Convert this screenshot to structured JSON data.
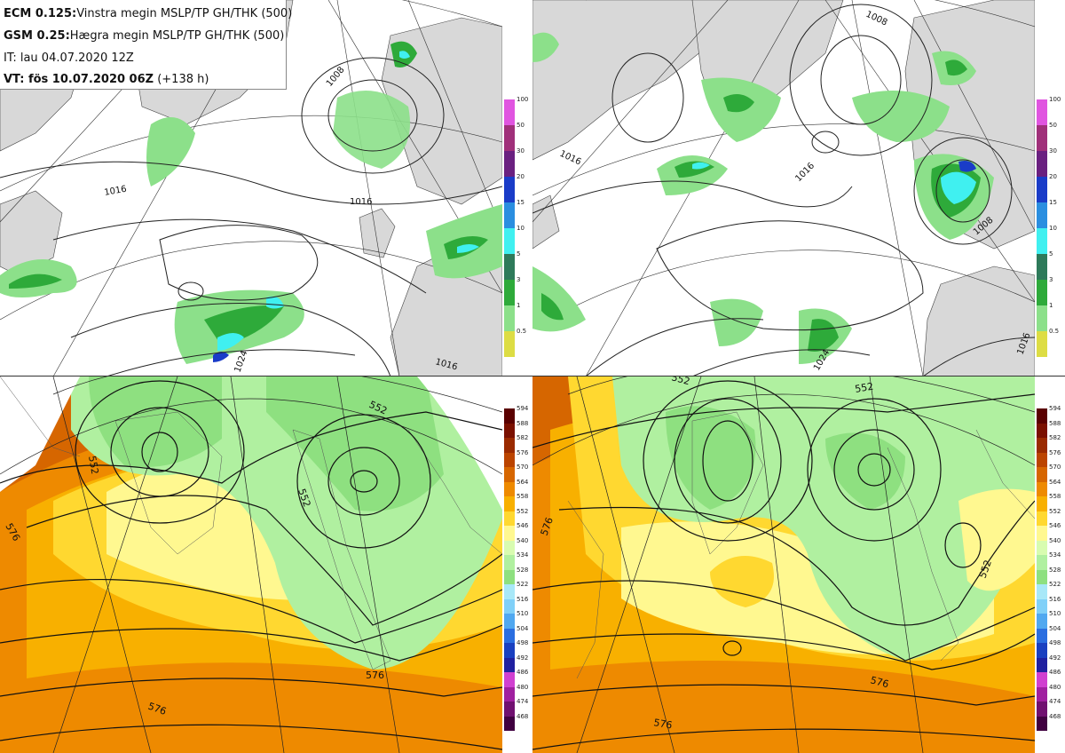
{
  "legend": {
    "line1_bold": "ECM 0.125:",
    "line1_text": "Vinstra megin MSLP/TP GH/THK (500)",
    "line2_bold": "GSM 0.25:",
    "line2_text": "Hægra megin MSLP/TP GH/THK (500)",
    "line3_text": "IT: lau 04.07.2020 12Z",
    "line4_bold": "VT: fös 10.07.2020 06Z",
    "line4_text": "(+138 h)"
  },
  "precip_colorbar": {
    "labels": [
      "100",
      "50",
      "30",
      "20",
      "15",
      "10",
      "5",
      "3",
      "1",
      "0.5"
    ],
    "colors": [
      "#e055e0",
      "#a0307a",
      "#6a2080",
      "#1a3cc8",
      "#2a8ee0",
      "#40f0f0",
      "#2e7a5a",
      "#2eaa3a",
      "#8ce08a",
      "#dddd44"
    ]
  },
  "thickness_colorbar": {
    "labels": [
      "594",
      "588",
      "582",
      "576",
      "570",
      "564",
      "558",
      "552",
      "546",
      "540",
      "534",
      "528",
      "522",
      "516",
      "510",
      "504",
      "498",
      "492",
      "486",
      "480",
      "474",
      "468"
    ],
    "colors": [
      "#5a0000",
      "#7a1000",
      "#9a2a00",
      "#bb4400",
      "#d66600",
      "#ee8a00",
      "#f8b000",
      "#ffd830",
      "#fff890",
      "#d8fcb0",
      "#b0f0a0",
      "#8ee080",
      "#a8e8f8",
      "#80d0f8",
      "#50a8f0",
      "#2a6ee0",
      "#1a40c0",
      "#2020a0",
      "#d040d0",
      "#a020a0",
      "#701070",
      "#400040"
    ]
  },
  "isobar_labels_left": [
    "1008",
    "1016",
    "1016",
    "1016",
    "1024"
  ],
  "isobar_labels_right": [
    "1008",
    "1016",
    "1016",
    "1008",
    "1016",
    "1024"
  ],
  "thk_labels_left": [
    "552",
    "552",
    "552",
    "576",
    "576",
    "576"
  ],
  "thk_labels_right": [
    "552",
    "552",
    "552",
    "576",
    "576",
    "576"
  ]
}
